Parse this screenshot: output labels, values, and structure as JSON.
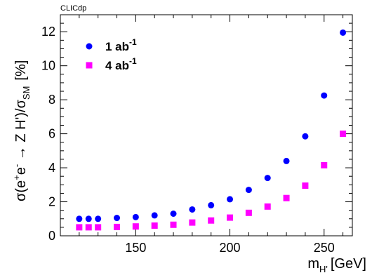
{
  "chart_data": {
    "type": "scatter",
    "label": "CLICdp",
    "xlabel": {
      "main": "m",
      "sub": "H'",
      "unit": "[GeV]"
    },
    "ylabel": {
      "sigma": "σ",
      "lp": "(",
      "e1": "e",
      "plus": "+",
      "e2": "e",
      "minus": "-",
      "arrow": " → Z H')/σ",
      "sub": "SM",
      "unit": "[%]"
    },
    "xlim": [
      110,
      265
    ],
    "ylim": [
      0,
      13
    ],
    "xticks": [
      150,
      200,
      250
    ],
    "yticks": [
      0,
      2,
      4,
      6,
      8,
      10,
      12
    ],
    "series": [
      {
        "name": "1 ab",
        "sup": "-1",
        "color": "#0000ff",
        "marker": "circle",
        "x": [
          120,
          125,
          130,
          140,
          150,
          160,
          170,
          180,
          190,
          200,
          210,
          220,
          230,
          240,
          250,
          260
        ],
        "y": [
          1.0,
          1.0,
          1.0,
          1.05,
          1.1,
          1.2,
          1.3,
          1.55,
          1.8,
          2.15,
          2.7,
          3.4,
          4.4,
          5.85,
          8.25,
          11.95
        ]
      },
      {
        "name": "4 ab",
        "sup": "-1",
        "color": "#ff00ff",
        "marker": "square",
        "x": [
          120,
          125,
          130,
          140,
          150,
          160,
          170,
          180,
          190,
          200,
          210,
          220,
          230,
          240,
          250,
          260
        ],
        "y": [
          0.5,
          0.5,
          0.5,
          0.52,
          0.55,
          0.6,
          0.65,
          0.78,
          0.9,
          1.07,
          1.35,
          1.72,
          2.22,
          2.95,
          4.15,
          6.0
        ]
      }
    ]
  }
}
